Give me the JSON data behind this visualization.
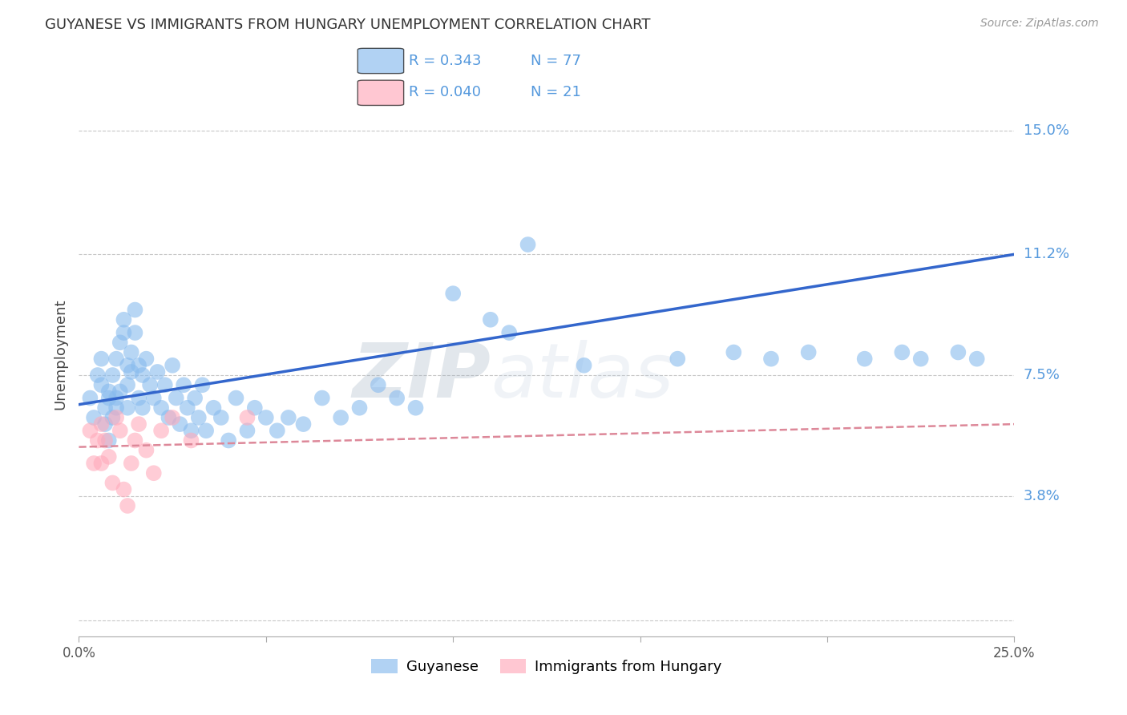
{
  "title": "GUYANESE VS IMMIGRANTS FROM HUNGARY UNEMPLOYMENT CORRELATION CHART",
  "source": "Source: ZipAtlas.com",
  "ylabel": "Unemployment",
  "xlim": [
    0.0,
    0.25
  ],
  "ylim": [
    -0.005,
    0.168
  ],
  "xticks": [
    0.0,
    0.05,
    0.1,
    0.15,
    0.2,
    0.25
  ],
  "xticklabels": [
    "0.0%",
    "",
    "",
    "",
    "",
    "25.0%"
  ],
  "ytick_values": [
    0.0,
    0.038,
    0.075,
    0.112,
    0.15
  ],
  "ytick_labels": [
    "",
    "3.8%",
    "7.5%",
    "11.2%",
    "15.0%"
  ],
  "background_color": "#ffffff",
  "grid_color": "#c8c8c8",
  "blue_color": "#88bbee",
  "pink_color": "#ffaabb",
  "blue_line_color": "#3366cc",
  "pink_line_color": "#dd8899",
  "right_label_color": "#5599dd",
  "title_color": "#333333",
  "source_color": "#999999",
  "ylabel_color": "#444444",
  "legend_R1": "R = 0.343",
  "legend_N1": "N = 77",
  "legend_R2": "R = 0.040",
  "legend_N2": "N = 21",
  "legend_color": "#5599dd",
  "watermark": "ZIPatlas",
  "watermark_color": "#ccd8ee",
  "blue_line_start_y": 0.066,
  "blue_line_end_y": 0.112,
  "pink_line_start_y": 0.053,
  "pink_line_end_y": 0.06,
  "blue_scatter_x": [
    0.003,
    0.004,
    0.005,
    0.006,
    0.006,
    0.007,
    0.007,
    0.008,
    0.008,
    0.008,
    0.009,
    0.009,
    0.01,
    0.01,
    0.01,
    0.011,
    0.011,
    0.012,
    0.012,
    0.013,
    0.013,
    0.013,
    0.014,
    0.014,
    0.015,
    0.015,
    0.016,
    0.016,
    0.017,
    0.017,
    0.018,
    0.019,
    0.02,
    0.021,
    0.022,
    0.023,
    0.024,
    0.025,
    0.026,
    0.027,
    0.028,
    0.029,
    0.03,
    0.031,
    0.032,
    0.033,
    0.034,
    0.036,
    0.038,
    0.04,
    0.042,
    0.045,
    0.047,
    0.05,
    0.053,
    0.056,
    0.06,
    0.065,
    0.07,
    0.075,
    0.08,
    0.085,
    0.09,
    0.1,
    0.11,
    0.115,
    0.12,
    0.135,
    0.16,
    0.175,
    0.185,
    0.195,
    0.21,
    0.22,
    0.225,
    0.235,
    0.24
  ],
  "blue_scatter_y": [
    0.068,
    0.062,
    0.075,
    0.072,
    0.08,
    0.06,
    0.065,
    0.07,
    0.068,
    0.055,
    0.062,
    0.075,
    0.08,
    0.068,
    0.065,
    0.085,
    0.07,
    0.092,
    0.088,
    0.078,
    0.072,
    0.065,
    0.082,
    0.076,
    0.095,
    0.088,
    0.078,
    0.068,
    0.075,
    0.065,
    0.08,
    0.072,
    0.068,
    0.076,
    0.065,
    0.072,
    0.062,
    0.078,
    0.068,
    0.06,
    0.072,
    0.065,
    0.058,
    0.068,
    0.062,
    0.072,
    0.058,
    0.065,
    0.062,
    0.055,
    0.068,
    0.058,
    0.065,
    0.062,
    0.058,
    0.062,
    0.06,
    0.068,
    0.062,
    0.065,
    0.072,
    0.068,
    0.065,
    0.1,
    0.092,
    0.088,
    0.115,
    0.078,
    0.08,
    0.082,
    0.08,
    0.082,
    0.08,
    0.082,
    0.08,
    0.082,
    0.08
  ],
  "pink_scatter_x": [
    0.003,
    0.004,
    0.005,
    0.006,
    0.006,
    0.007,
    0.008,
    0.009,
    0.01,
    0.011,
    0.012,
    0.013,
    0.014,
    0.015,
    0.016,
    0.018,
    0.02,
    0.022,
    0.025,
    0.03,
    0.045
  ],
  "pink_scatter_y": [
    0.058,
    0.048,
    0.055,
    0.06,
    0.048,
    0.055,
    0.05,
    0.042,
    0.062,
    0.058,
    0.04,
    0.035,
    0.048,
    0.055,
    0.06,
    0.052,
    0.045,
    0.058,
    0.062,
    0.055,
    0.062
  ]
}
